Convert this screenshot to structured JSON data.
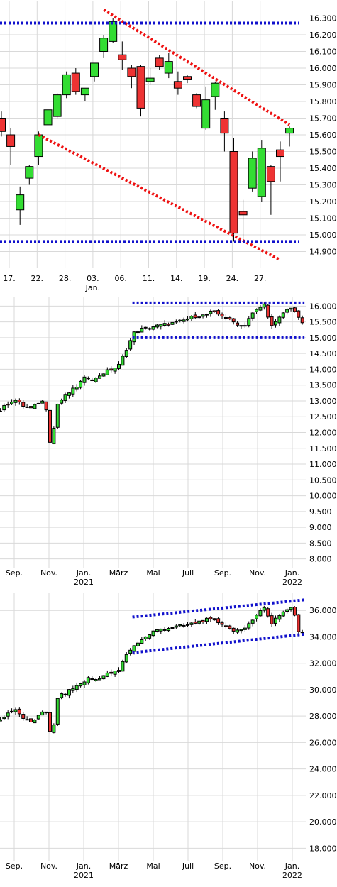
{
  "colors": {
    "up": "#33dd33",
    "down": "#ee3333",
    "trend_red": "#ee1111",
    "trend_blue": "#1111cc",
    "grid": "#d9d9d9"
  },
  "chart_data": [
    {
      "type": "candlestick",
      "title": "",
      "ylim": [
        14800,
        16400
      ],
      "yticks": [
        "16.300",
        "16.200",
        "16.100",
        "16.000",
        "15.900",
        "15.800",
        "15.700",
        "15.600",
        "15.500",
        "15.400",
        "15.300",
        "15.200",
        "15.100",
        "15.000",
        "14.900"
      ],
      "ytick_values": [
        16300,
        16200,
        16100,
        16000,
        15900,
        15800,
        15700,
        15600,
        15500,
        15400,
        15300,
        15200,
        15100,
        15000,
        14900
      ],
      "xticks": [
        {
          "label": "17.",
          "index": 0
        },
        {
          "label": "22.",
          "index": 3
        },
        {
          "label": "28.",
          "index": 6
        },
        {
          "label": "03.",
          "index": 9
        },
        {
          "label": "06.",
          "index": 12
        },
        {
          "label": "11.",
          "index": 15
        },
        {
          "label": "14.",
          "index": 18
        },
        {
          "label": "19.",
          "index": 21
        },
        {
          "label": "24.",
          "index": 24
        },
        {
          "label": "27.",
          "index": 27
        }
      ],
      "month_labels": [
        {
          "label": "Jan.",
          "index": 9
        }
      ],
      "candles": [
        {
          "o": 15700,
          "h": 15740,
          "l": 15590,
          "c": 15620
        },
        {
          "o": 15600,
          "h": 15640,
          "l": 15420,
          "c": 15530
        },
        {
          "o": 15150,
          "h": 15290,
          "l": 15060,
          "c": 15240
        },
        {
          "o": 15340,
          "h": 15420,
          "l": 15300,
          "c": 15410
        },
        {
          "o": 15470,
          "h": 15620,
          "l": 15420,
          "c": 15600
        },
        {
          "o": 15660,
          "h": 15760,
          "l": 15640,
          "c": 15750
        },
        {
          "o": 15710,
          "h": 15850,
          "l": 15700,
          "c": 15840
        },
        {
          "o": 15840,
          "h": 15980,
          "l": 15820,
          "c": 15960
        },
        {
          "o": 15970,
          "h": 16000,
          "l": 15840,
          "c": 15860
        },
        {
          "o": 15840,
          "h": 15880,
          "l": 15800,
          "c": 15880
        },
        {
          "o": 15950,
          "h": 16030,
          "l": 15920,
          "c": 16030
        },
        {
          "o": 16100,
          "h": 16200,
          "l": 16060,
          "c": 16180
        },
        {
          "o": 16160,
          "h": 16300,
          "l": 16150,
          "c": 16280
        },
        {
          "o": 16080,
          "h": 16160,
          "l": 15990,
          "c": 16050
        },
        {
          "o": 16000,
          "h": 16020,
          "l": 15880,
          "c": 15950
        },
        {
          "o": 16010,
          "h": 16020,
          "l": 15710,
          "c": 15760
        },
        {
          "o": 15920,
          "h": 16000,
          "l": 15900,
          "c": 15940
        },
        {
          "o": 16060,
          "h": 16080,
          "l": 15990,
          "c": 16010
        },
        {
          "o": 15970,
          "h": 16090,
          "l": 15940,
          "c": 16040
        },
        {
          "o": 15920,
          "h": 15980,
          "l": 15840,
          "c": 15880
        },
        {
          "o": 15950,
          "h": 15960,
          "l": 15910,
          "c": 15930
        },
        {
          "o": 15840,
          "h": 15850,
          "l": 15760,
          "c": 15770
        },
        {
          "o": 15640,
          "h": 15890,
          "l": 15630,
          "c": 15810
        },
        {
          "o": 15830,
          "h": 15920,
          "l": 15750,
          "c": 15910
        },
        {
          "o": 15700,
          "h": 15740,
          "l": 15500,
          "c": 15610
        },
        {
          "o": 15500,
          "h": 15580,
          "l": 14960,
          "c": 15010
        },
        {
          "o": 15140,
          "h": 15210,
          "l": 14970,
          "c": 15120
        },
        {
          "o": 15280,
          "h": 15500,
          "l": 15260,
          "c": 15460
        },
        {
          "o": 15230,
          "h": 15570,
          "l": 15200,
          "c": 15520
        },
        {
          "o": 15410,
          "h": 15420,
          "l": 15120,
          "c": 15320
        },
        {
          "o": 15510,
          "h": 15560,
          "l": 15320,
          "c": 15470
        },
        {
          "o": 15610,
          "h": 15650,
          "l": 15530,
          "c": 15640
        }
      ],
      "lines": [
        {
          "color": "red",
          "from": {
            "index": 11,
            "value": 16350
          },
          "to": {
            "index": 31,
            "value": 15660
          }
        },
        {
          "color": "red",
          "from": {
            "index": 4,
            "value": 15600
          },
          "to": {
            "index": 30,
            "value": 14850
          }
        },
        {
          "color": "blue",
          "from": {
            "index": -1,
            "value": 16270
          },
          "to": {
            "index": 32,
            "value": 16270
          }
        },
        {
          "color": "blue",
          "from": {
            "index": -1,
            "value": 14960
          },
          "to": {
            "index": 32,
            "value": 14960
          }
        }
      ]
    },
    {
      "type": "candlestick",
      "title": "",
      "ylim": [
        7700,
        16300
      ],
      "yticks": [
        "16.000",
        "15.500",
        "15.000",
        "14.500",
        "14.000",
        "13.500",
        "13.000",
        "12.500",
        "12.000",
        "11.500",
        "11.000",
        "10.500",
        "10.000",
        "9.500",
        "9.000",
        "8.500",
        "8.000"
      ],
      "ytick_values": [
        16000,
        15500,
        15000,
        14500,
        14000,
        13500,
        13000,
        12500,
        12000,
        11500,
        11000,
        10500,
        10000,
        9500,
        9000,
        8500,
        8000
      ],
      "xticks": [
        {
          "label": "Sep.",
          "month": 8
        },
        {
          "label": "Nov.",
          "month": 10
        },
        {
          "label": "Jan.",
          "month": 12
        },
        {
          "label": "März",
          "month": 14
        },
        {
          "label": "Mai",
          "month": 16
        },
        {
          "label": "Juli",
          "month": 18
        },
        {
          "label": "Sep.",
          "month": 20
        },
        {
          "label": "Nov.",
          "month": 22
        },
        {
          "label": "Jan.",
          "month": 24
        }
      ],
      "year_labels": [
        {
          "label": "2021",
          "month": 12
        },
        {
          "label": "2022",
          "month": 24
        }
      ],
      "month_range": [
        7.2,
        24.7
      ],
      "anchors": [
        [
          7.2,
          12700
        ],
        [
          7.6,
          12900
        ],
        [
          8.0,
          13050
        ],
        [
          8.5,
          12850
        ],
        [
          9.0,
          12750
        ],
        [
          9.5,
          13000
        ],
        [
          9.8,
          12950
        ],
        [
          10.1,
          11550
        ],
        [
          10.3,
          12200
        ],
        [
          10.5,
          12900
        ],
        [
          11.0,
          13200
        ],
        [
          11.5,
          13400
        ],
        [
          12.0,
          13700
        ],
        [
          12.3,
          13750
        ],
        [
          12.6,
          13650
        ],
        [
          13.0,
          13850
        ],
        [
          13.4,
          13950
        ],
        [
          14.0,
          14100
        ],
        [
          14.5,
          14700
        ],
        [
          14.9,
          15150
        ],
        [
          15.2,
          15250
        ],
        [
          15.6,
          15300
        ],
        [
          16.0,
          15350
        ],
        [
          16.5,
          15400
        ],
        [
          17.0,
          15450
        ],
        [
          17.5,
          15500
        ],
        [
          18.0,
          15600
        ],
        [
          18.5,
          15700
        ],
        [
          19.0,
          15700
        ],
        [
          19.3,
          15800
        ],
        [
          19.7,
          15750
        ],
        [
          20.0,
          15700
        ],
        [
          20.4,
          15550
        ],
        [
          20.8,
          15450
        ],
        [
          21.2,
          15350
        ],
        [
          21.6,
          15700
        ],
        [
          22.0,
          15900
        ],
        [
          22.4,
          16050
        ],
        [
          22.8,
          15350
        ],
        [
          23.1,
          15500
        ],
        [
          23.5,
          15800
        ],
        [
          24.0,
          16000
        ],
        [
          24.4,
          15550
        ],
        [
          24.7,
          15450
        ]
      ],
      "lines": [
        {
          "color": "blue",
          "from": {
            "month": 14.8,
            "value": 16100
          },
          "to": {
            "month": 24.7,
            "value": 16100
          }
        },
        {
          "color": "blue",
          "from": {
            "month": 14.8,
            "value": 15000
          },
          "to": {
            "month": 24.7,
            "value": 15000
          }
        }
      ]
    },
    {
      "type": "candlestick",
      "title": "",
      "ylim": [
        17000,
        37300
      ],
      "yticks": [
        "36.000",
        "34.000",
        "32.000",
        "30.000",
        "28.000",
        "26.000",
        "24.000",
        "22.000",
        "20.000",
        "18.000"
      ],
      "ytick_values": [
        36000,
        34000,
        32000,
        30000,
        28000,
        26000,
        24000,
        22000,
        20000,
        18000
      ],
      "xticks": [
        {
          "label": "Sep.",
          "month": 8
        },
        {
          "label": "Nov.",
          "month": 10
        },
        {
          "label": "Jan.",
          "month": 12
        },
        {
          "label": "März",
          "month": 14
        },
        {
          "label": "Mai",
          "month": 16
        },
        {
          "label": "Juli",
          "month": 18
        },
        {
          "label": "Sep.",
          "month": 20
        },
        {
          "label": "Nov.",
          "month": 22
        },
        {
          "label": "Jan.",
          "month": 24
        }
      ],
      "year_labels": [
        {
          "label": "2021",
          "month": 12
        },
        {
          "label": "2022",
          "month": 24
        }
      ],
      "month_range": [
        7.2,
        24.7
      ],
      "anchors": [
        [
          7.2,
          27700
        ],
        [
          7.6,
          28200
        ],
        [
          8.0,
          28500
        ],
        [
          8.5,
          27900
        ],
        [
          9.0,
          27400
        ],
        [
          9.5,
          28300
        ],
        [
          9.8,
          28500
        ],
        [
          10.1,
          26500
        ],
        [
          10.3,
          27400
        ],
        [
          10.5,
          29400
        ],
        [
          11.0,
          29800
        ],
        [
          11.5,
          30200
        ],
        [
          12.0,
          30600
        ],
        [
          12.3,
          30900
        ],
        [
          12.6,
          30700
        ],
        [
          13.0,
          31000
        ],
        [
          13.4,
          31200
        ],
        [
          14.0,
          31400
        ],
        [
          14.5,
          32800
        ],
        [
          14.9,
          33300
        ],
        [
          15.2,
          33700
        ],
        [
          15.6,
          34000
        ],
        [
          16.0,
          34400
        ],
        [
          16.5,
          34600
        ],
        [
          17.0,
          34700
        ],
        [
          17.5,
          34800
        ],
        [
          18.0,
          34900
        ],
        [
          18.5,
          35100
        ],
        [
          19.0,
          35300
        ],
        [
          19.5,
          35200
        ],
        [
          20.0,
          35000
        ],
        [
          20.4,
          34600
        ],
        [
          20.8,
          34500
        ],
        [
          21.2,
          34400
        ],
        [
          21.6,
          35200
        ],
        [
          22.0,
          35800
        ],
        [
          22.4,
          36200
        ],
        [
          22.8,
          35000
        ],
        [
          23.1,
          35500
        ],
        [
          23.5,
          35900
        ],
        [
          24.0,
          36300
        ],
        [
          24.4,
          34200
        ],
        [
          24.7,
          34500
        ]
      ],
      "lines": [
        {
          "color": "blue",
          "from": {
            "month": 14.8,
            "value": 35500
          },
          "to": {
            "month": 24.7,
            "value": 36800
          }
        },
        {
          "color": "blue",
          "from": {
            "month": 14.8,
            "value": 32800
          },
          "to": {
            "month": 24.7,
            "value": 34200
          }
        }
      ]
    }
  ]
}
